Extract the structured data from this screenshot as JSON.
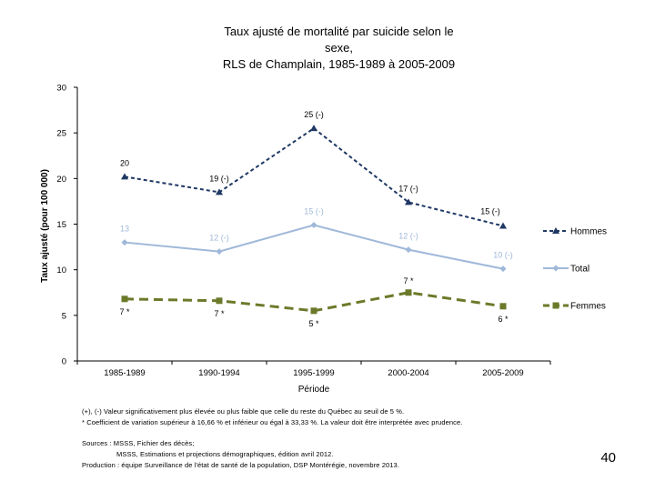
{
  "title_lines": [
    "Taux ajusté de mortalité par suicide selon le",
    "sexe,",
    "RLS de Champlain, 1985-1989 à 2005-2009"
  ],
  "notes": [
    "(+), (-) Valeur significativement plus élevée ou plus faible que celle du reste du Québec au seuil de 5 %.",
    "* Coefficient de variation supérieur à 16,66 % et inférieur ou égal à 33,33 %. La valeur doit être interprétée avec prudence."
  ],
  "sources": [
    "Sources : MSSS, Fichier des décès;",
    "MSSS, Estimations et projections démographiques, édition avril 2012.",
    "Production : équipe Surveillance de l'état de santé de la population, DSP Montérégie, novembre 2013."
  ],
  "page_number": "40",
  "chart_data": {
    "type": "line",
    "title": "Taux ajusté de mortalité par suicide selon le sexe, RLS de Champlain, 1985-1989 à 2005-2009",
    "xlabel": "Période",
    "ylabel": "Taux ajusté (pour 100 000)",
    "categories": [
      "1985-1989",
      "1990-1994",
      "1995-1999",
      "2000-2004",
      "2005-2009"
    ],
    "ylim": [
      0,
      30
    ],
    "yticks": [
      0,
      5,
      10,
      15,
      20,
      25,
      30
    ],
    "legend_position": "right",
    "series": [
      {
        "name": "Hommes",
        "color": "#1f3864",
        "marker": "triangle",
        "dashed": true,
        "values": [
          20.2,
          18.5,
          25.5,
          17.4,
          14.8
        ],
        "labels": [
          "20",
          "19 (-)",
          "25 (-)",
          "17 (-)",
          "15 (-)"
        ]
      },
      {
        "name": "Total",
        "color": "#9fb8d9",
        "marker": "diamond",
        "dashed": false,
        "values": [
          13.0,
          12.0,
          14.9,
          12.2,
          10.1
        ],
        "labels": [
          "13",
          "12 (-)",
          "15 (-)",
          "12 (-)",
          "10 (-)"
        ]
      },
      {
        "name": "Femmes",
        "color": "#6b7a2a",
        "marker": "square",
        "dashed": true,
        "values": [
          6.8,
          6.6,
          5.5,
          7.5,
          6.0
        ],
        "labels": [
          "7 *",
          "7 *",
          "5 *",
          "7 *",
          "6 *"
        ]
      }
    ]
  }
}
